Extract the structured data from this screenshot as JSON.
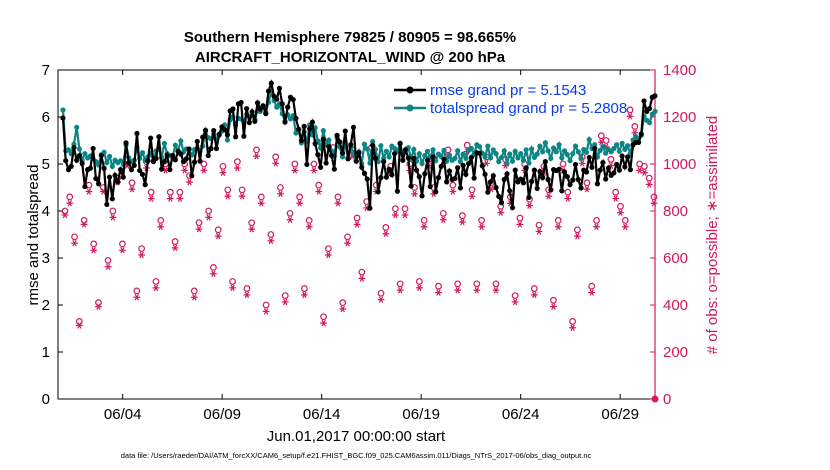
{
  "chart_data": {
    "type": "line",
    "title_line1": "Southern Hemisphere 79825 / 80905 = 98.665%",
    "title_line2": "AIRCRAFT_HORIZONTAL_WIND @ 200 hPa",
    "xlabel": "Jun.01,2017 00:00:00 start",
    "ylabel_left": "rmse and totalspread",
    "ylabel_right": "# of obs: o=possible; ∗=assimilated",
    "footer": "data file: /Users/raeder/DAI/ATM_forcXX/CAM6_setup/f.e21.FHIST_BGC.f09_025.CAM6assim.011/Diags_NTrS_2017-06/obs_diag_output.nc",
    "xlim": [
      0.75,
      30.75
    ],
    "ylim_left": [
      0,
      7
    ],
    "ylim_right": [
      0,
      1400
    ],
    "xticks": [
      4,
      9,
      14,
      19,
      24,
      29
    ],
    "xtick_labels": [
      "06/04",
      "06/09",
      "06/14",
      "06/19",
      "06/24",
      "06/29"
    ],
    "yticks_left": [
      0,
      1,
      2,
      3,
      4,
      5,
      6,
      7
    ],
    "yticks_right": [
      0,
      200,
      400,
      600,
      800,
      1000,
      1200,
      1400
    ],
    "colors": {
      "rmse": "#000000",
      "spread": "#0e8585",
      "obs": "#d01860",
      "legend_text": "#0a3cf0"
    },
    "legend": {
      "position": "top-right",
      "entries": [
        "rmse grand pr = 5.1543",
        "totalspread grand pr = 5.2808"
      ]
    },
    "series": [
      {
        "name": "rmse",
        "axis": "left",
        "values": [
          5.98,
          5.07,
          4.88,
          4.95,
          5.35,
          5.08,
          5.18,
          5.01,
          4.52,
          4.88,
          4.91,
          5.33,
          4.69,
          4.58,
          5.18,
          4.91,
          4.14,
          4.72,
          4.26,
          4.76,
          4.62,
          4.88,
          4.72,
          5.45,
          5.03,
          4.88,
          4.97,
          5.65,
          4.86,
          4.78,
          4.56,
          5.07,
          5.55,
          5.05,
          5.12,
          5.58,
          4.89,
          5.05,
          5.19,
          4.88,
          5.18,
          5.09,
          5.27,
          5.21,
          5.05,
          5.11,
          5.32,
          4.75,
          5.04,
          5.48,
          5.06,
          5.57,
          5.71,
          5.18,
          5.33,
          5.71,
          5.33,
          5.63,
          5.79,
          5.73,
          5.62,
          6.13,
          6.17,
          5.58,
          6.28,
          6.31,
          5.59,
          6.18,
          5.88,
          6.11,
          5.91,
          6.3,
          6.17,
          6.24,
          6.07,
          6.55,
          6.72,
          6.44,
          6.38,
          6.61,
          6.28,
          5.89,
          6.21,
          6.42,
          6.37,
          5.97,
          5.74,
          5.5,
          5.8,
          4.99,
          5.75,
          5.89,
          5.43,
          5.2,
          4.93,
          5.53,
          5.02,
          5.37,
          5.18,
          4.89,
          5.61,
          5.47,
          5.23,
          5.7,
          5.11,
          5.41,
          5.78,
          5.06,
          5.24,
          4.93,
          4.8,
          4.68,
          4.06,
          5.4,
          5.12,
          4.41,
          4.71,
          5.05,
          4.72,
          4.89,
          4.77,
          5.22,
          4.42,
          5.44,
          5.08,
          5.3,
          5.13,
          4.53,
          5.12,
          4.87,
          4.73,
          4.32,
          4.79,
          5.08,
          4.52,
          5.15,
          4.41,
          4.71,
          4.95,
          5.1,
          4.62,
          4.85,
          4.67,
          4.69,
          4.92,
          4.49,
          4.97,
          4.78,
          5.01,
          5.14,
          4.7,
          5.24,
          5.23,
          4.96,
          4.78,
          4.4,
          4.62,
          4.75,
          4.5,
          4.31,
          4.18,
          4.67,
          4.79,
          4.43,
          4.07,
          4.87,
          4.62,
          4.68,
          4.6,
          4.92,
          4.29,
          4.63,
          4.87,
          4.48,
          4.84,
          4.71,
          5.05,
          4.67,
          4.45,
          4.88,
          4.86,
          4.89,
          4.43,
          4.83,
          4.73,
          4.56,
          4.66,
          4.99,
          4.67,
          4.49,
          4.87,
          4.83,
          5.14,
          4.93,
          5.33,
          4.58,
          4.87,
          5.03,
          4.68,
          4.91,
          4.76,
          4.81,
          4.99,
          4.87,
          5.17,
          4.94,
          5.15,
          4.88,
          5.41,
          5.46,
          5.46,
          5.64,
          6.34,
          6.12,
          6.18,
          6.42,
          6.45
        ],
        "points_in_chart": "one point every 0.125 day (3-hourly)"
      },
      {
        "name": "totalspread",
        "axis": "left",
        "values": [
          6.15,
          5.28,
          5.3,
          5.22,
          5.42,
          5.78,
          5.32,
          5.08,
          5.22,
          5.13,
          5.17,
          5.11,
          5.05,
          4.98,
          5.2,
          5.25,
          5.03,
          5.16,
          4.95,
          5.08,
          5.03,
          5.07,
          4.99,
          5.41,
          5.13,
          5.05,
          5.08,
          5.36,
          5.12,
          5.24,
          5.08,
          5.15,
          5.22,
          5.08,
          5.28,
          5.33,
          5.14,
          5.44,
          5.22,
          5.18,
          5.14,
          5.4,
          5.28,
          5.49,
          5.26,
          5.32,
          5.3,
          5.19,
          5.31,
          5.33,
          5.27,
          5.38,
          5.72,
          5.56,
          5.54,
          5.63,
          5.53,
          5.61,
          5.7,
          5.83,
          5.51,
          5.94,
          6.01,
          5.83,
          5.97,
          5.96,
          5.9,
          6.06,
          6.01,
          6.04,
          5.95,
          6.13,
          6.12,
          6.22,
          6.1,
          6.31,
          6.54,
          6.35,
          6.21,
          6.28,
          6.07,
          5.91,
          6.05,
          5.96,
          6.03,
          5.66,
          5.73,
          5.45,
          5.68,
          5.47,
          5.83,
          5.62,
          5.77,
          5.49,
          5.34,
          5.71,
          5.42,
          5.51,
          5.28,
          5.17,
          5.56,
          5.36,
          5.15,
          5.44,
          5.12,
          5.36,
          5.25,
          5.06,
          5.26,
          5.01,
          5.42,
          5.32,
          5.02,
          5.48,
          5.31,
          5.05,
          5.39,
          5.12,
          5.27,
          5.15,
          5.38,
          5.33,
          5.27,
          5.43,
          5.2,
          5.31,
          5.35,
          5.12,
          5.31,
          5.06,
          5.22,
          5.01,
          5.18,
          5.27,
          5.14,
          5.3,
          5.07,
          5.21,
          5.16,
          5.29,
          5.06,
          5.19,
          5.08,
          5.12,
          5.28,
          5.05,
          5.21,
          5.12,
          5.29,
          5.33,
          5.2,
          5.41,
          5.37,
          5.23,
          5.15,
          5.38,
          5.13,
          5.3,
          5.22,
          5.05,
          5.14,
          5.28,
          5.01,
          5.21,
          5.06,
          5.27,
          5.13,
          5.22,
          5.08,
          5.3,
          5.02,
          5.32,
          5.14,
          5.21,
          5.38,
          5.26,
          5.45,
          5.28,
          5.12,
          5.34,
          5.26,
          5.41,
          5.13,
          5.28,
          5.2,
          5.07,
          5.22,
          5.38,
          5.26,
          5.12,
          5.31,
          5.25,
          5.52,
          5.33,
          5.41,
          5.15,
          5.29,
          5.37,
          5.23,
          5.31,
          5.26,
          5.33,
          5.41,
          5.27,
          5.44,
          5.31,
          5.39,
          5.22,
          5.51,
          5.58,
          5.54,
          5.61,
          6.02,
          5.93,
          5.88,
          6.06,
          6.12
        ]
      },
      {
        "name": "possible_obs",
        "axis": "right",
        "marker": "o",
        "values": [
          800,
          860,
          690,
          330,
          760,
          910,
          660,
          410,
          900,
          590,
          800,
          940,
          660,
          1020,
          920,
          460,
          640,
          1010,
          880,
          500,
          760,
          1000,
          880,
          670,
          880,
          1000,
          950,
          460,
          750,
          1000,
          800,
          560,
          720,
          990,
          890,
          500,
          1010,
          890,
          470,
          750,
          1060,
          860,
          400,
          700,
          1030,
          900,
          440,
          790,
          1000,
          860,
          470,
          760,
          1000,
          910,
          350,
          640,
          1070,
          860,
          410,
          690,
          1060,
          770,
          540,
          840,
          1070,
          910,
          450,
          730,
          990,
          810,
          490,
          810,
          1000,
          900,
          500,
          760,
          1020,
          900,
          480,
          790,
          1060,
          910,
          490,
          780,
          1080,
          890,
          490,
          760,
          1030,
          920,
          490,
          820,
          1020,
          860,
          440,
          770,
          1000,
          850,
          470,
          740,
          990,
          890,
          420,
          760,
          1000,
          880,
          330,
          720,
          1030,
          920,
          480,
          760,
          1120,
          1100,
          1020,
          880,
          820,
          760,
          1230,
          1160,
          1000,
          990,
          940,
          860
        ],
        "points_in_chart": "irregular sub-daily sample of counts"
      },
      {
        "name": "assimilated_obs",
        "axis": "right",
        "marker": "*",
        "values": [
          800,
          850,
          680,
          330,
          760,
          900,
          650,
          410,
          900,
          580,
          790,
          940,
          650,
          1010,
          910,
          450,
          630,
          1000,
          870,
          490,
          750,
          990,
          870,
          660,
          870,
          990,
          940,
          450,
          740,
          990,
          790,
          550,
          710,
          980,
          880,
          490,
          1000,
          880,
          460,
          740,
          1050,
          850,
          390,
          690,
          1020,
          890,
          430,
          780,
          990,
          850,
          460,
          750,
          990,
          900,
          340,
          630,
          1060,
          850,
          400,
          680,
          1050,
          760,
          530,
          830,
          1060,
          900,
          440,
          720,
          980,
          800,
          480,
          800,
          990,
          890,
          490,
          750,
          1010,
          890,
          470,
          780,
          1050,
          900,
          480,
          770,
          1070,
          880,
          480,
          750,
          1020,
          910,
          480,
          810,
          1010,
          850,
          430,
          760,
          990,
          840,
          460,
          730,
          980,
          880,
          410,
          750,
          990,
          870,
          320,
          710,
          1020,
          910,
          470,
          750,
          1110,
          1090,
          1010,
          870,
          810,
          750,
          1220,
          1150,
          990,
          980,
          930,
          850
        ]
      }
    ]
  }
}
